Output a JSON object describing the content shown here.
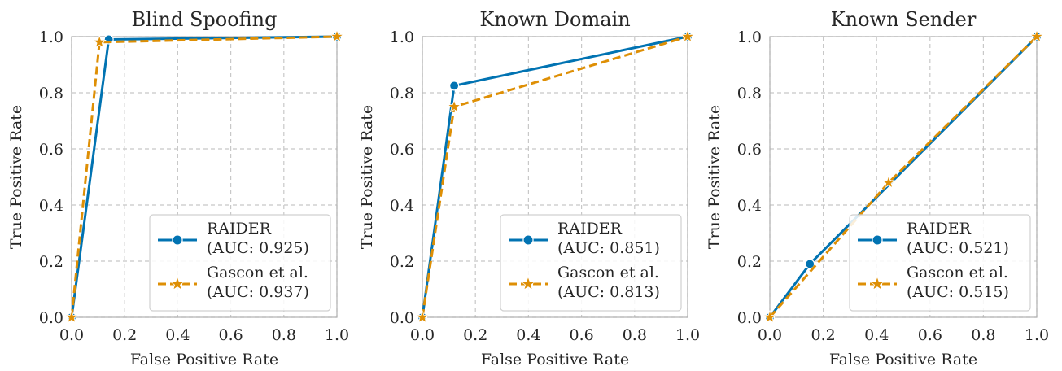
{
  "chart_data": [
    {
      "type": "line",
      "title": "Blind Spoofing",
      "xlabel": "False Positive Rate",
      "ylabel": "True Positive Rate",
      "xlim": [
        0,
        1
      ],
      "ylim": [
        0,
        1
      ],
      "ticks": [
        "0.0",
        "0.2",
        "0.4",
        "0.6",
        "0.8",
        "1.0"
      ],
      "grid": true,
      "legend_position": "bottom-right",
      "series": [
        {
          "name": "RAIDER",
          "auc": "(AUC: 0.925)",
          "color": "#0173b2",
          "marker": "circle",
          "dash": "solid",
          "x": [
            0.0,
            0.14,
            1.0
          ],
          "y": [
            0.0,
            0.99,
            1.0
          ]
        },
        {
          "name": "Gascon et al.",
          "auc": "(AUC: 0.937)",
          "color": "#de8f05",
          "marker": "star",
          "dash": "dashed",
          "x": [
            0.0,
            0.105,
            1.0
          ],
          "y": [
            0.0,
            0.98,
            1.0
          ]
        }
      ]
    },
    {
      "type": "line",
      "title": "Known Domain",
      "xlabel": "False Positive Rate",
      "ylabel": "True Positive Rate",
      "xlim": [
        0,
        1
      ],
      "ylim": [
        0,
        1
      ],
      "ticks": [
        "0.0",
        "0.2",
        "0.4",
        "0.6",
        "0.8",
        "1.0"
      ],
      "grid": true,
      "legend_position": "bottom-right",
      "series": [
        {
          "name": "RAIDER",
          "auc": "(AUC: 0.851)",
          "color": "#0173b2",
          "marker": "circle",
          "dash": "solid",
          "x": [
            0.0,
            0.12,
            1.0
          ],
          "y": [
            0.0,
            0.825,
            1.0
          ]
        },
        {
          "name": "Gascon et al.",
          "auc": "(AUC: 0.813)",
          "color": "#de8f05",
          "marker": "star",
          "dash": "dashed",
          "x": [
            0.0,
            0.12,
            1.0
          ],
          "y": [
            0.0,
            0.75,
            1.0
          ]
        }
      ]
    },
    {
      "type": "line",
      "title": "Known Sender",
      "xlabel": "False Positive Rate",
      "ylabel": "True Positive Rate",
      "xlim": [
        0,
        1
      ],
      "ylim": [
        0,
        1
      ],
      "ticks": [
        "0.0",
        "0.2",
        "0.4",
        "0.6",
        "0.8",
        "1.0"
      ],
      "grid": true,
      "legend_position": "bottom-right",
      "series": [
        {
          "name": "RAIDER",
          "auc": "(AUC: 0.521)",
          "color": "#0173b2",
          "marker": "circle",
          "dash": "solid",
          "x": [
            0.0,
            0.15,
            1.0
          ],
          "y": [
            0.0,
            0.19,
            1.0
          ]
        },
        {
          "name": "Gascon et al.",
          "auc": "(AUC: 0.515)",
          "color": "#de8f05",
          "marker": "star",
          "dash": "dashed",
          "x": [
            0.0,
            0.445,
            1.0
          ],
          "y": [
            0.0,
            0.48,
            1.0
          ]
        }
      ]
    }
  ]
}
